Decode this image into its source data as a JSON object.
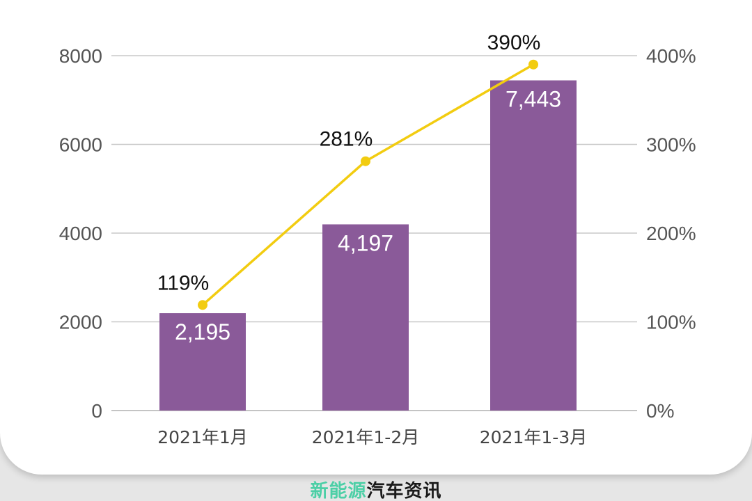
{
  "chart_data": {
    "type": "bar",
    "categories": [
      "2021年1月",
      "2021年1-2月",
      "2021年1-3月"
    ],
    "values": [
      2195,
      4197,
      7443
    ],
    "value_labels": [
      "2,195",
      "4,197",
      "7,443"
    ],
    "line_values": [
      119,
      281,
      390
    ],
    "line_labels": [
      "119%",
      "281%",
      "390%"
    ],
    "y_left": {
      "ticks": [
        "0",
        "2000",
        "4000",
        "6000",
        "8000"
      ],
      "range": [
        0,
        8000
      ]
    },
    "y_right": {
      "ticks": [
        "0%",
        "100%",
        "200%",
        "300%",
        "400%"
      ],
      "range": [
        0,
        400
      ]
    },
    "grid": true,
    "colors": {
      "bar": "#8a5a99",
      "line": "#f2cc10",
      "grid": "#c8c8c8",
      "tick_text": "#555555"
    }
  },
  "footer": {
    "part1": "新能源",
    "part2": "汽车资讯"
  }
}
